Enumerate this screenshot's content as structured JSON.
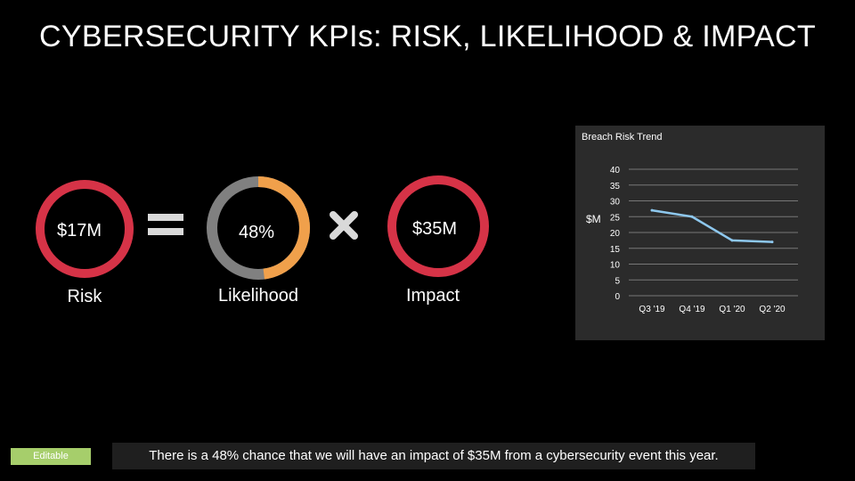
{
  "slide": {
    "title": "CYBERSECURITY KPIs: RISK, LIKELIHOOD & IMPACT",
    "summary": "There is a 48% chance that we will have an impact of $35M from a cybersecurity event this year.",
    "badge": "Editable"
  },
  "kpis": {
    "risk": {
      "value": "$17M",
      "caption": "Risk",
      "color": "#d63347"
    },
    "likelihood": {
      "value": "48%",
      "caption": "Likelihood",
      "fraction": 0.48,
      "fill_color": "#f0a04b",
      "track_color": "#808080"
    },
    "impact": {
      "value": "$35M",
      "caption": "Impact",
      "color": "#d63347"
    },
    "equals_icon": "equals-icon",
    "times_icon": "times-icon"
  },
  "chart_data": {
    "type": "line",
    "title": "Breach Risk Trend",
    "ylabel": "$M",
    "xlabel": "",
    "categories": [
      "Q3 '19",
      "Q4 '19",
      "Q1 '20",
      "Q2 '20"
    ],
    "series": [
      {
        "values": [
          27,
          25,
          17.5,
          17
        ]
      }
    ],
    "ylim": [
      0,
      40
    ],
    "yticks": [
      "0",
      "5",
      "10",
      "15",
      "20",
      "25",
      "30",
      "35",
      "40"
    ],
    "grid": true,
    "line_color": "#8ec8ee"
  }
}
